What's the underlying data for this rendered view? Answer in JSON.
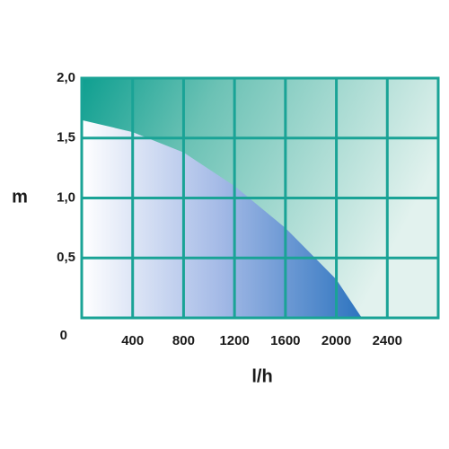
{
  "chart_data": {
    "type": "area",
    "xlabel": "l/h",
    "ylabel": "m",
    "x": [
      0,
      400,
      800,
      1200,
      1600,
      2000,
      2200
    ],
    "values": [
      1.65,
      1.55,
      1.38,
      1.1,
      0.75,
      0.32,
      0
    ],
    "xlim": [
      0,
      2800
    ],
    "ylim": [
      0,
      2
    ],
    "xticks": [
      400,
      800,
      1200,
      1600,
      2000,
      2400
    ],
    "yticks": [
      {
        "value": 0,
        "label": "0"
      },
      {
        "value": 0.5,
        "label": "0,5"
      },
      {
        "value": 1,
        "label": "1,0"
      },
      {
        "value": 1.5,
        "label": "1,5"
      },
      {
        "value": 2,
        "label": "2,0"
      }
    ],
    "grid": true,
    "color": "#1aa396"
  }
}
